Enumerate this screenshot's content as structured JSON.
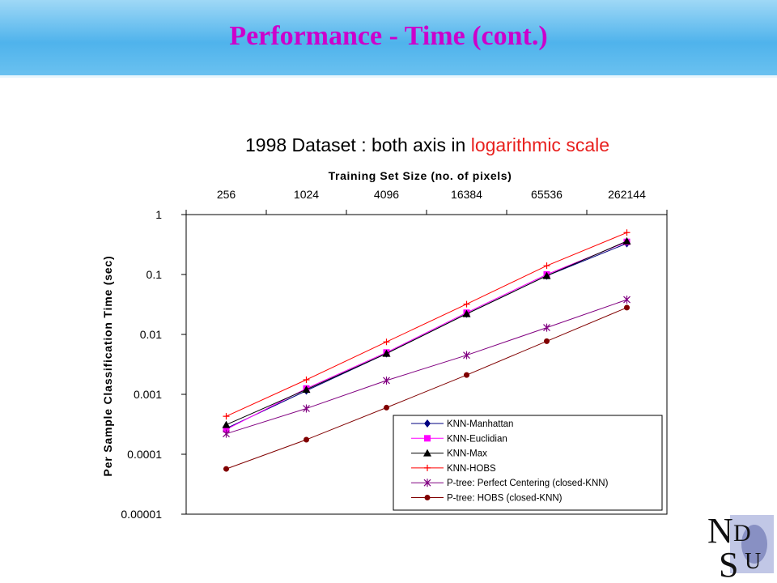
{
  "slide": {
    "title": "Performance - Time (cont.)",
    "subtitle_main": "1998 Dataset : both axis in ",
    "subtitle_highlight": "logarithmic scale"
  },
  "logo": {
    "icon": "ndsu-logo-icon",
    "letters": "NDSU"
  },
  "chart_data": {
    "type": "line",
    "x_scale": "log",
    "y_scale": "log",
    "xlabel": "Training Set Size (no. of pixels)",
    "ylabel": "Per Sample Classification Time (sec)",
    "x_axis_position": "top",
    "categories": [
      "256",
      "1024",
      "4096",
      "16384",
      "65536",
      "262144"
    ],
    "x": [
      256,
      1024,
      4096,
      16384,
      65536,
      262144
    ],
    "y_ticks": [
      "1",
      "0.1",
      "0.01",
      "0.001",
      "0.0001",
      "0.00001"
    ],
    "ylim": [
      1e-05,
      1
    ],
    "grid": false,
    "legend_position": "bottom-right",
    "series": [
      {
        "name": "KNN-Manhattan",
        "color": "#000080",
        "marker": "diamond",
        "values": [
          0.00027,
          0.00115,
          0.0048,
          0.022,
          0.095,
          0.33
        ]
      },
      {
        "name": "KNN-Euclidian",
        "color": "#ff00ff",
        "marker": "square",
        "values": [
          0.00026,
          0.00125,
          0.005,
          0.023,
          0.1,
          0.35
        ]
      },
      {
        "name": "KNN-Max",
        "color": "#000000",
        "marker": "triangle",
        "values": [
          0.00031,
          0.0012,
          0.0048,
          0.022,
          0.095,
          0.36
        ]
      },
      {
        "name": "KNN-HOBS",
        "color": "#ff0000",
        "marker": "plus",
        "values": [
          0.00043,
          0.00175,
          0.0075,
          0.032,
          0.14,
          0.5
        ]
      },
      {
        "name": "P-tree: Perfect Centering (closed-KNN)",
        "color": "#800080",
        "marker": "star",
        "values": [
          0.00022,
          0.00058,
          0.0017,
          0.0045,
          0.013,
          0.038
        ]
      },
      {
        "name": "P-tree: HOBS (closed-KNN)",
        "color": "#800000",
        "marker": "circle",
        "values": [
          5.7e-05,
          0.000175,
          0.0006,
          0.0021,
          0.0077,
          0.028
        ]
      }
    ]
  }
}
